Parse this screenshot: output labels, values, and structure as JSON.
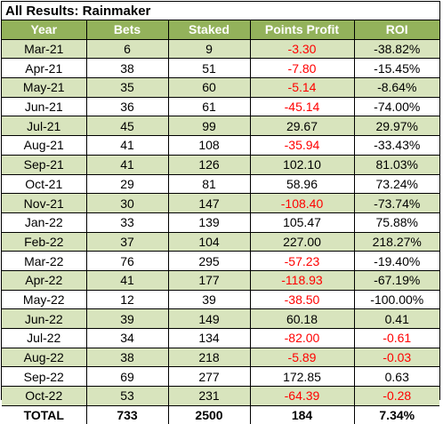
{
  "title": "All Results: Rainmaker",
  "columns": [
    "Year",
    "Bets",
    "Staked",
    "Points Profit",
    "ROI"
  ],
  "rows": [
    {
      "year": "Mar-21",
      "bets": "6",
      "staked": "9",
      "profit": "-3.30",
      "roi": "-38.82%",
      "profit_negative": true,
      "roi_negative": false
    },
    {
      "year": "Apr-21",
      "bets": "38",
      "staked": "51",
      "profit": "-7.80",
      "roi": "-15.45%",
      "profit_negative": true,
      "roi_negative": false
    },
    {
      "year": "May-21",
      "bets": "35",
      "staked": "60",
      "profit": "-5.14",
      "roi": "-8.64%",
      "profit_negative": true,
      "roi_negative": false
    },
    {
      "year": "Jun-21",
      "bets": "36",
      "staked": "61",
      "profit": "-45.14",
      "roi": "-74.00%",
      "profit_negative": true,
      "roi_negative": false
    },
    {
      "year": "Jul-21",
      "bets": "45",
      "staked": "99",
      "profit": "29.67",
      "roi": "29.97%",
      "profit_negative": false,
      "roi_negative": false
    },
    {
      "year": "Aug-21",
      "bets": "41",
      "staked": "108",
      "profit": "-35.94",
      "roi": "-33.43%",
      "profit_negative": true,
      "roi_negative": false
    },
    {
      "year": "Sep-21",
      "bets": "41",
      "staked": "126",
      "profit": "102.10",
      "roi": "81.03%",
      "profit_negative": false,
      "roi_negative": false
    },
    {
      "year": "Oct-21",
      "bets": "29",
      "staked": "81",
      "profit": "58.96",
      "roi": "73.24%",
      "profit_negative": false,
      "roi_negative": false
    },
    {
      "year": "Nov-21",
      "bets": "30",
      "staked": "147",
      "profit": "-108.40",
      "roi": "-73.74%",
      "profit_negative": true,
      "roi_negative": false
    },
    {
      "year": "Jan-22",
      "bets": "33",
      "staked": "139",
      "profit": "105.47",
      "roi": "75.88%",
      "profit_negative": false,
      "roi_negative": false
    },
    {
      "year": "Feb-22",
      "bets": "37",
      "staked": "104",
      "profit": "227.00",
      "roi": "218.27%",
      "profit_negative": false,
      "roi_negative": false
    },
    {
      "year": "Mar-22",
      "bets": "76",
      "staked": "295",
      "profit": "-57.23",
      "roi": "-19.40%",
      "profit_negative": true,
      "roi_negative": false
    },
    {
      "year": "Apr-22",
      "bets": "41",
      "staked": "177",
      "profit": "-118.93",
      "roi": "-67.19%",
      "profit_negative": true,
      "roi_negative": false
    },
    {
      "year": "May-22",
      "bets": "12",
      "staked": "39",
      "profit": "-38.50",
      "roi": "-100.00%",
      "profit_negative": true,
      "roi_negative": false
    },
    {
      "year": "Jun-22",
      "bets": "39",
      "staked": "149",
      "profit": "60.18",
      "roi": "0.41",
      "profit_negative": false,
      "roi_negative": false
    },
    {
      "year": "Jul-22",
      "bets": "34",
      "staked": "134",
      "profit": "-82.00",
      "roi": "-0.61",
      "profit_negative": true,
      "roi_negative": true
    },
    {
      "year": "Aug-22",
      "bets": "38",
      "staked": "218",
      "profit": "-5.89",
      "roi": "-0.03",
      "profit_negative": true,
      "roi_negative": true
    },
    {
      "year": "Sep-22",
      "bets": "69",
      "staked": "277",
      "profit": "172.85",
      "roi": "0.63",
      "profit_negative": false,
      "roi_negative": false
    },
    {
      "year": "Oct-22",
      "bets": "53",
      "staked": "231",
      "profit": "-64.39",
      "roi": "-0.28",
      "profit_negative": true,
      "roi_negative": true
    }
  ],
  "total": {
    "year": "TOTAL",
    "bets": "733",
    "staked": "2500",
    "profit": "184",
    "roi": "7.34%"
  },
  "colors": {
    "header_bg": "#93b25b",
    "header_text": "#ffffff",
    "band_bg": "#d8e4bd",
    "negative_text": "#ff0000"
  }
}
